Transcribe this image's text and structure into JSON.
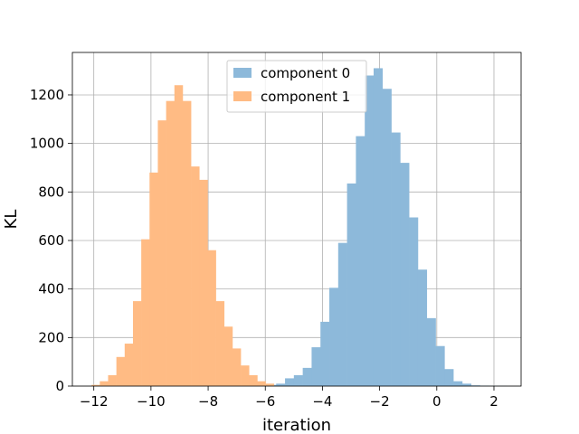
{
  "chart_data": {
    "type": "bar",
    "title": "",
    "xlabel": "iteration",
    "ylabel": "KL",
    "xlim": [
      -12.75,
      2.95
    ],
    "ylim": [
      0,
      1375
    ],
    "grid": true,
    "legend_position": "top-center",
    "x_ticks": [
      -12,
      -10,
      -8,
      -6,
      -4,
      -2,
      0,
      2
    ],
    "x_tick_labels": [
      "−12",
      "−10",
      "−8",
      "−6",
      "−4",
      "−2",
      "0",
      "2"
    ],
    "y_ticks": [
      0,
      200,
      400,
      600,
      800,
      1000,
      1200
    ],
    "y_tick_labels": [
      "0",
      "200",
      "400",
      "600",
      "800",
      "1000",
      "1200"
    ],
    "series": [
      {
        "name": "component 0",
        "color": "#8db9da",
        "bin_edges": [
          -6.24,
          -5.93,
          -5.62,
          -5.31,
          -5.0,
          -4.69,
          -4.38,
          -4.07,
          -3.76,
          -3.45,
          -3.14,
          -2.83,
          -2.52,
          -2.21,
          -1.9,
          -1.59,
          -1.28,
          -0.97,
          -0.66,
          -0.35,
          -0.04,
          0.27,
          0.58,
          0.89,
          1.2,
          1.51,
          1.82,
          2.13,
          2.44
        ],
        "counts": [
          2,
          5,
          10,
          32,
          45,
          75,
          160,
          265,
          405,
          590,
          835,
          1030,
          1280,
          1310,
          1225,
          1045,
          920,
          695,
          480,
          280,
          165,
          70,
          20,
          10,
          3,
          2,
          1,
          1
        ]
      },
      {
        "name": "component 1",
        "color": "#ffbb84",
        "bin_edges": [
          -12.08,
          -11.79,
          -11.5,
          -11.21,
          -10.92,
          -10.63,
          -10.34,
          -10.05,
          -9.76,
          -9.47,
          -9.18,
          -8.89,
          -8.6,
          -8.31,
          -8.02,
          -7.73,
          -7.44,
          -7.15,
          -6.86,
          -6.57,
          -6.28,
          -5.99,
          -5.7
        ],
        "counts": [
          5,
          20,
          45,
          120,
          175,
          350,
          605,
          880,
          1095,
          1175,
          1240,
          1175,
          905,
          850,
          560,
          350,
          245,
          155,
          85,
          45,
          20,
          10
        ]
      }
    ]
  }
}
